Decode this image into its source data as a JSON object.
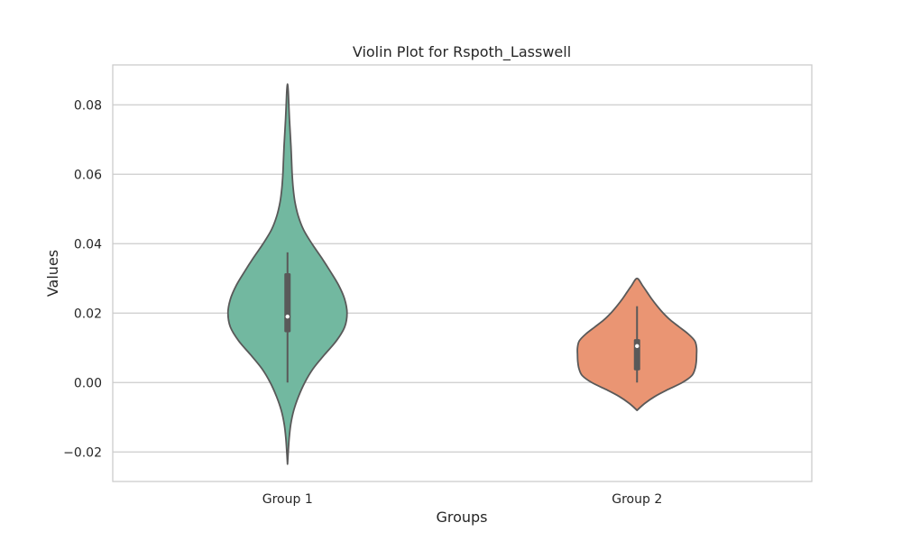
{
  "chart_data": {
    "type": "violin",
    "title": "Violin Plot for Rspoth_Lasswell",
    "xlabel": "Groups",
    "ylabel": "Values",
    "ylim": [
      -0.0285,
      0.0915
    ],
    "yticks": [
      -0.02,
      0.0,
      0.02,
      0.04,
      0.06,
      0.08
    ],
    "ytick_labels": [
      "−0.02",
      "0.00",
      "0.02",
      "0.04",
      "0.06",
      "0.08"
    ],
    "grid": "horizontal",
    "categories": [
      "Group 1",
      "Group 2"
    ],
    "series": [
      {
        "category": "Group 1",
        "color": "#72b8a0",
        "whisker": [
          0.0,
          0.0375
        ],
        "quartiles": [
          0.0145,
          0.0315
        ],
        "median": 0.019,
        "density": [
          [
            -0.0235,
            0.0
          ],
          [
            -0.02,
            0.012
          ],
          [
            -0.016,
            0.028
          ],
          [
            -0.012,
            0.055
          ],
          [
            -0.008,
            0.105
          ],
          [
            -0.004,
            0.185
          ],
          [
            0.0,
            0.29
          ],
          [
            0.004,
            0.43
          ],
          [
            0.008,
            0.62
          ],
          [
            0.012,
            0.82
          ],
          [
            0.016,
            0.96
          ],
          [
            0.02,
            1.0
          ],
          [
            0.024,
            0.96
          ],
          [
            0.028,
            0.86
          ],
          [
            0.032,
            0.72
          ],
          [
            0.036,
            0.57
          ],
          [
            0.04,
            0.41
          ],
          [
            0.044,
            0.27
          ],
          [
            0.048,
            0.18
          ],
          [
            0.052,
            0.125
          ],
          [
            0.056,
            0.095
          ],
          [
            0.06,
            0.078
          ],
          [
            0.064,
            0.068
          ],
          [
            0.068,
            0.058
          ],
          [
            0.072,
            0.045
          ],
          [
            0.076,
            0.032
          ],
          [
            0.08,
            0.022
          ],
          [
            0.084,
            0.012
          ],
          [
            0.086,
            0.0
          ]
        ]
      },
      {
        "category": "Group 2",
        "color": "#ea9573",
        "whisker": [
          0.0,
          0.022
        ],
        "quartiles": [
          0.0035,
          0.0125
        ],
        "median": 0.0105,
        "density": [
          [
            -0.008,
            0.0
          ],
          [
            -0.006,
            0.13
          ],
          [
            -0.004,
            0.3
          ],
          [
            -0.002,
            0.52
          ],
          [
            0.0,
            0.76
          ],
          [
            0.002,
            0.92
          ],
          [
            0.004,
            0.975
          ],
          [
            0.006,
            0.995
          ],
          [
            0.008,
            1.0
          ],
          [
            0.01,
            1.0
          ],
          [
            0.012,
            0.97
          ],
          [
            0.014,
            0.86
          ],
          [
            0.016,
            0.71
          ],
          [
            0.018,
            0.56
          ],
          [
            0.02,
            0.44
          ],
          [
            0.022,
            0.34
          ],
          [
            0.024,
            0.25
          ],
          [
            0.026,
            0.17
          ],
          [
            0.028,
            0.09
          ],
          [
            0.03,
            0.0
          ]
        ]
      }
    ]
  }
}
